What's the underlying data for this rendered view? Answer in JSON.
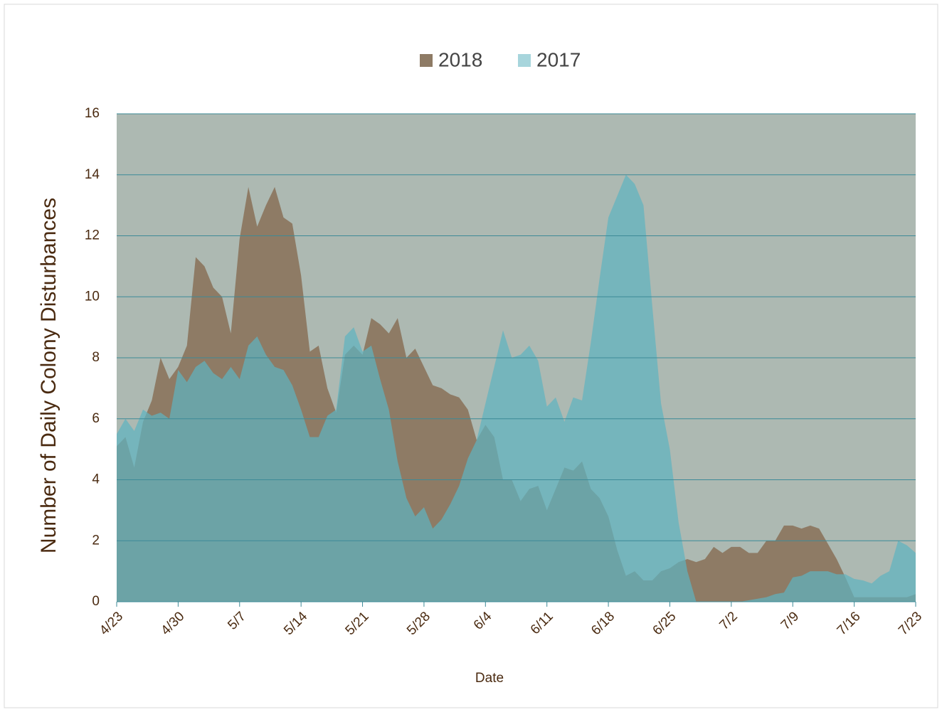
{
  "chart_data": {
    "type": "area",
    "x_label": "Date",
    "y_label": "Number of Daily Colony Disturbances",
    "categories": [
      "4/23",
      null,
      null,
      null,
      null,
      null,
      null,
      "4/30",
      null,
      null,
      null,
      null,
      null,
      null,
      "5/7",
      null,
      null,
      null,
      null,
      null,
      null,
      "5/14",
      null,
      null,
      null,
      null,
      null,
      null,
      "5/21",
      null,
      null,
      null,
      null,
      null,
      null,
      "5/28",
      null,
      null,
      null,
      null,
      null,
      null,
      "6/4",
      null,
      null,
      null,
      null,
      null,
      null,
      "6/11",
      null,
      null,
      null,
      null,
      null,
      null,
      "6/18",
      null,
      null,
      null,
      null,
      null,
      null,
      "6/25",
      null,
      null,
      null,
      null,
      null,
      null,
      "7/2",
      null,
      null,
      null,
      null,
      null,
      null,
      "7/9",
      null,
      null,
      null,
      null,
      null,
      null,
      "7/16",
      null,
      null,
      null,
      null,
      null,
      null,
      "7/23"
    ],
    "series": [
      {
        "name": "2018",
        "color": "#8e7b65",
        "values": [
          5.1,
          5.4,
          4.4,
          5.9,
          6.6,
          8.0,
          7.3,
          7.7,
          8.4,
          11.3,
          11.0,
          10.3,
          10.0,
          8.8,
          11.9,
          13.6,
          12.3,
          13.0,
          13.6,
          12.6,
          12.4,
          10.7,
          8.2,
          8.4,
          7.0,
          6.2,
          8.1,
          8.4,
          8.1,
          9.3,
          9.1,
          8.8,
          9.3,
          8.0,
          8.3,
          7.7,
          7.1,
          7.0,
          6.8,
          6.7,
          6.3,
          5.3,
          5.8,
          5.4,
          4.0,
          4.0,
          3.3,
          3.7,
          3.8,
          3.0,
          3.7,
          4.4,
          4.3,
          4.6,
          3.7,
          3.4,
          2.8,
          1.7,
          0.85,
          1.0,
          0.7,
          0.7,
          1.0,
          1.1,
          1.3,
          1.4,
          1.3,
          1.4,
          1.8,
          1.6,
          1.8,
          1.8,
          1.6,
          1.6,
          2.0,
          2.0,
          2.5,
          2.5,
          2.4,
          2.5,
          2.4,
          1.9,
          1.4,
          0.8,
          0.15,
          0.15,
          0.15,
          0.15,
          0.15,
          0.15,
          0.15,
          0.25
        ]
      },
      {
        "name": "2017",
        "color": "#5fb3bf",
        "values": [
          5.5,
          6.0,
          5.6,
          6.3,
          6.1,
          6.2,
          6.0,
          7.6,
          7.2,
          7.7,
          7.9,
          7.5,
          7.3,
          7.7,
          7.3,
          8.4,
          8.7,
          8.1,
          7.7,
          7.6,
          7.1,
          6.3,
          5.4,
          5.4,
          6.1,
          6.3,
          8.7,
          9.0,
          8.2,
          8.4,
          7.3,
          6.3,
          4.6,
          3.4,
          2.8,
          3.1,
          2.4,
          2.7,
          3.2,
          3.8,
          4.7,
          5.3,
          6.5,
          7.7,
          8.9,
          8.0,
          8.1,
          8.4,
          7.9,
          6.4,
          6.7,
          5.9,
          6.7,
          6.6,
          8.5,
          10.6,
          12.6,
          13.3,
          14.0,
          13.7,
          13.0,
          9.7,
          6.5,
          5.0,
          2.6,
          1.0,
          0,
          0,
          0,
          0,
          0,
          0,
          0.05,
          0.1,
          0.15,
          0.25,
          0.3,
          0.8,
          0.85,
          1.0,
          1.0,
          1.0,
          0.9,
          0.9,
          0.75,
          0.7,
          0.6,
          0.85,
          1.0,
          2.0,
          1.85,
          1.6
        ]
      }
    ],
    "ylim": [
      0,
      16
    ],
    "yticks": [
      0,
      2,
      4,
      6,
      8,
      10,
      12,
      14,
      16
    ],
    "grid": true,
    "legend": "top"
  }
}
